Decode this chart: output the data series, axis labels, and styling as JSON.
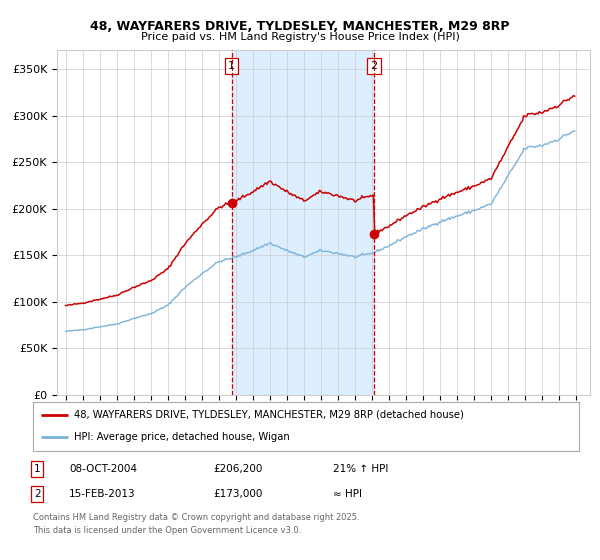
{
  "title_line1": "48, WAYFARERS DRIVE, TYLDESLEY, MANCHESTER, M29 8RP",
  "title_line2": "Price paid vs. HM Land Registry's House Price Index (HPI)",
  "sale1_date_num": 2004.77,
  "sale1_price": 206200,
  "sale2_date_num": 2013.12,
  "sale2_price": 173000,
  "legend_line1": "48, WAYFARERS DRIVE, TYLDESLEY, MANCHESTER, M29 8RP (detached house)",
  "legend_line2": "HPI: Average price, detached house, Wigan",
  "footer1": "Contains HM Land Registry data © Crown copyright and database right 2025.",
  "footer2": "This data is licensed under the Open Government Licence v3.0.",
  "hpi_color": "#7ab3d9",
  "price_color": "#cc0000",
  "vline_color": "#cc0000",
  "highlight_color": "#ddeeff",
  "grid_color": "#cccccc",
  "background_color": "#ffffff",
  "ymin": 0,
  "ymax": 370000,
  "xmin": 1994.5,
  "xmax": 2025.8,
  "hpi_anchors_years": [
    1995,
    1996,
    1997,
    1998,
    1999,
    2000,
    2001,
    2002,
    2003,
    2004,
    2005,
    2006,
    2007,
    2008,
    2009,
    2010,
    2011,
    2012,
    2013,
    2014,
    2015,
    2016,
    2017,
    2018,
    2019,
    2020,
    2021,
    2022,
    2023,
    2024,
    2025
  ],
  "hpi_anchors_vals": [
    68000,
    70000,
    73000,
    76000,
    82000,
    87000,
    96000,
    115000,
    130000,
    143000,
    148000,
    155000,
    163000,
    155000,
    148000,
    155000,
    152000,
    148000,
    152000,
    160000,
    170000,
    178000,
    186000,
    192000,
    198000,
    205000,
    235000,
    265000,
    268000,
    275000,
    285000
  ]
}
